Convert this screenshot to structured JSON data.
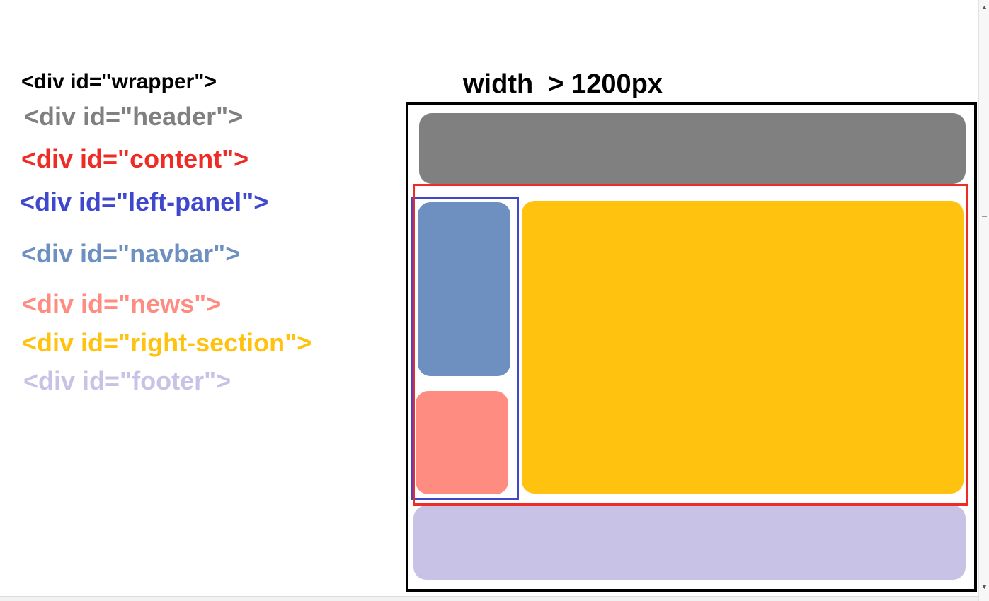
{
  "legend": [
    {
      "id": "legend-wrapper",
      "name": "legend-wrapper",
      "text": "<div id=\"wrapper\">",
      "color": "#000000"
    },
    {
      "id": "legend-header",
      "name": "legend-header",
      "text": "<div id=\"header\">",
      "color": "#808080"
    },
    {
      "id": "legend-content",
      "name": "legend-content",
      "text": "<div id=\"content\">",
      "color": "#ee2b24"
    },
    {
      "id": "legend-left-panel",
      "name": "legend-left-panel",
      "text": "<div id=\"left-panel\">",
      "color": "#3f48cc"
    },
    {
      "id": "legend-navbar",
      "name": "legend-navbar",
      "text": "<div id=\"navbar\">",
      "color": "#6d90c0"
    },
    {
      "id": "legend-news",
      "name": "legend-news",
      "text": "<div id=\"news\">",
      "color": "#ff8c80"
    },
    {
      "id": "legend-right-section",
      "name": "legend-right-section",
      "text": "<div id=\"right-section\">",
      "color": "#ffc20e"
    },
    {
      "id": "legend-footer",
      "name": "legend-footer",
      "text": "<div id=\"footer\">",
      "color": "#c8c2e6"
    }
  ],
  "diagram": {
    "width_label": "width  > 1200px",
    "colors": {
      "wrapper": "#000000",
      "header": "#808080",
      "content": "#ee2b24",
      "left_panel": "#3f48cc",
      "navbar": "#6d90c0",
      "news": "#ff8c80",
      "right_section": "#ffc20e",
      "footer": "#c8c2e6"
    }
  }
}
